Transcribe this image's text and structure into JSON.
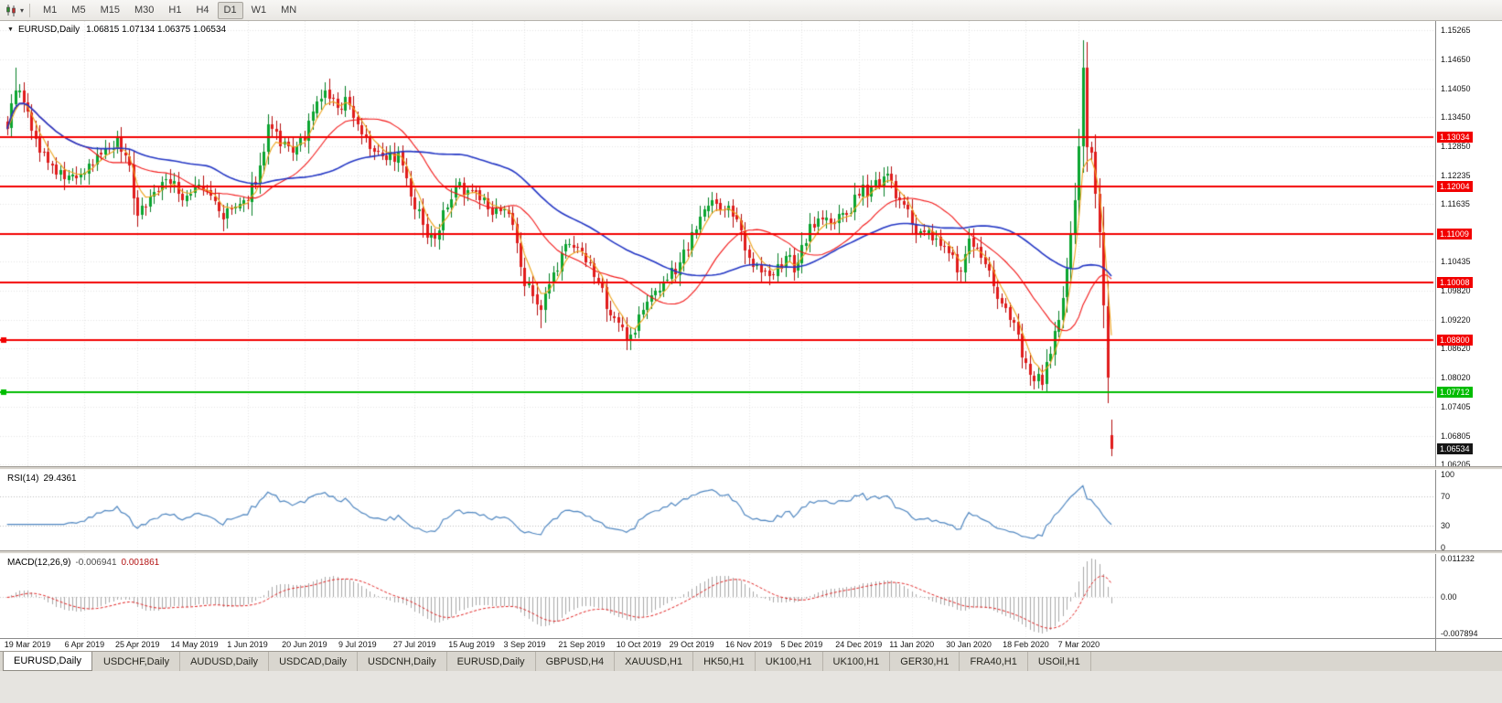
{
  "toolbar": {
    "timeframes": [
      "M1",
      "M5",
      "M15",
      "M30",
      "H1",
      "H4",
      "D1",
      "W1",
      "MN"
    ],
    "active_timeframe": "D1"
  },
  "chart_header": {
    "symbol": "EURUSD,Daily",
    "ohlc_text": "1.06815 1.07134 1.06375 1.06534"
  },
  "rsi_panel": {
    "label": "RSI(14)",
    "value": "29.4361",
    "line_color": "#4f86c0",
    "levels": [
      70,
      30
    ],
    "axis_labels": [
      {
        "v": 100,
        "t": "100"
      },
      {
        "v": 70,
        "t": "70"
      },
      {
        "v": 30,
        "t": "30"
      },
      {
        "v": 0,
        "t": "0"
      }
    ]
  },
  "macd_panel": {
    "label": "MACD(12,26,9)",
    "main_value": "-0.006941",
    "signal_value": "0.001861",
    "axis_top": "0.011232",
    "axis_zero": "0.00",
    "axis_bottom": "-0.007894",
    "hist_color": "#a8a8a8",
    "signal_color": "#e02020"
  },
  "tabs": {
    "items": [
      "EURUSD,Daily",
      "USDCHF,Daily",
      "AUDUSD,Daily",
      "USDCAD,Daily",
      "USDCNH,Daily",
      "EURUSD,Daily",
      "GBPUSD,H4",
      "XAUUSD,H1",
      "HK50,H1",
      "UK100,H1",
      "UK100,H1",
      "GER30,H1",
      "FRA40,H1",
      "USOil,H1"
    ],
    "active_index": 0
  },
  "chart_data": {
    "type": "candlestick",
    "symbol": "EURUSD",
    "timeframe": "Daily",
    "bars": 272,
    "price_range": {
      "top": 1.15265,
      "bottom": 1.06205
    },
    "last_ohlc": {
      "open": 1.06815,
      "high": 1.07134,
      "low": 1.06375,
      "close": 1.06534
    },
    "current_price": {
      "price": 1.06534,
      "label": "1.06534",
      "badge_color": "#161616"
    },
    "y_axis_ticks": [
      "1.15265",
      "1.14650",
      "1.14050",
      "1.13450",
      "1.12850",
      "1.12235",
      "1.11635",
      "1.10435",
      "1.09820",
      "1.09220",
      "1.08620",
      "1.08020",
      "1.07405",
      "1.06805",
      "1.06205"
    ],
    "x_axis_ticks": [
      {
        "bar": 5,
        "label": "19 Mar 2019"
      },
      {
        "bar": 19,
        "label": "6 Apr 2019"
      },
      {
        "bar": 32,
        "label": "25 Apr 2019"
      },
      {
        "bar": 46,
        "label": "14 May 2019"
      },
      {
        "bar": 59,
        "label": "1 Jun 2019"
      },
      {
        "bar": 73,
        "label": "20 Jun 2019"
      },
      {
        "bar": 86,
        "label": "9 Jul 2019"
      },
      {
        "bar": 100,
        "label": "27 Jul 2019"
      },
      {
        "bar": 114,
        "label": "15 Aug 2019"
      },
      {
        "bar": 127,
        "label": "3 Sep 2019"
      },
      {
        "bar": 141,
        "label": "21 Sep 2019"
      },
      {
        "bar": 155,
        "label": "10 Oct 2019"
      },
      {
        "bar": 168,
        "label": "29 Oct 2019"
      },
      {
        "bar": 182,
        "label": "16 Nov 2019"
      },
      {
        "bar": 195,
        "label": "5 Dec 2019"
      },
      {
        "bar": 209,
        "label": "24 Dec 2019"
      },
      {
        "bar": 222,
        "label": "11 Jan 2020"
      },
      {
        "bar": 236,
        "label": "30 Jan 2020"
      },
      {
        "bar": 250,
        "label": "18 Feb 2020"
      },
      {
        "bar": 263,
        "label": "7 Mar 2020"
      }
    ],
    "horizontal_lines": [
      {
        "price": 1.13034,
        "label": "1.13034",
        "color": "#f20000",
        "handle": false
      },
      {
        "price": 1.12004,
        "label": "1.12004",
        "color": "#f20000",
        "handle": false
      },
      {
        "price": 1.11009,
        "label": "1.11009",
        "color": "#f20000",
        "handle": false
      },
      {
        "price": 1.10008,
        "label": "1.10008",
        "color": "#f20000",
        "handle": false
      },
      {
        "price": 1.088,
        "label": "1.08800",
        "color": "#f20000",
        "handle": true
      },
      {
        "price": 1.07712,
        "label": "1.07712",
        "color": "#00bc00",
        "handle": true
      }
    ],
    "moving_averages": [
      {
        "name": "fast",
        "type": "ema",
        "period": 5,
        "color": "#eda31a",
        "width": 1.1
      },
      {
        "name": "medium",
        "type": "sma",
        "period": 20,
        "color": "#f21616",
        "width": 1.1
      },
      {
        "name": "slow",
        "type": "sma",
        "period": 50,
        "color": "#2336c4",
        "width": 1.6
      }
    ],
    "colors": {
      "bull": "#0aa52f",
      "bear": "#e11b1b",
      "bull_wick": "#067f26",
      "bear_wick": "#b30d0d",
      "grid": "#e4e4e4"
    },
    "close_anchors": [
      [
        0,
        1.132
      ],
      [
        2,
        1.14
      ],
      [
        4,
        1.1375
      ],
      [
        7,
        1.13
      ],
      [
        10,
        1.125
      ],
      [
        14,
        1.1215
      ],
      [
        19,
        1.1228
      ],
      [
        23,
        1.1268
      ],
      [
        27,
        1.1302
      ],
      [
        30,
        1.1245
      ],
      [
        32,
        1.114
      ],
      [
        35,
        1.118
      ],
      [
        39,
        1.1215
      ],
      [
        43,
        1.1172
      ],
      [
        46,
        1.12
      ],
      [
        50,
        1.1182
      ],
      [
        53,
        1.1132
      ],
      [
        56,
        1.1158
      ],
      [
        59,
        1.117
      ],
      [
        62,
        1.1245
      ],
      [
        64,
        1.133
      ],
      [
        67,
        1.1285
      ],
      [
        70,
        1.127
      ],
      [
        73,
        1.1295
      ],
      [
        76,
        1.1378
      ],
      [
        78,
        1.14
      ],
      [
        81,
        1.1365
      ],
      [
        83,
        1.1388
      ],
      [
        86,
        1.133
      ],
      [
        90,
        1.1272
      ],
      [
        93,
        1.1255
      ],
      [
        96,
        1.1272
      ],
      [
        99,
        1.118
      ],
      [
        102,
        1.112
      ],
      [
        105,
        1.1092
      ],
      [
        107,
        1.115
      ],
      [
        110,
        1.1202
      ],
      [
        113,
        1.1192
      ],
      [
        116,
        1.1172
      ],
      [
        119,
        1.1142
      ],
      [
        122,
        1.1152
      ],
      [
        125,
        1.1082
      ],
      [
        127,
        1.0992
      ],
      [
        129,
        1.0972
      ],
      [
        131,
        1.0942
      ],
      [
        134,
        1.1022
      ],
      [
        136,
        1.1062
      ],
      [
        139,
        1.1072
      ],
      [
        142,
        1.1042
      ],
      [
        145,
        1.1002
      ],
      [
        148,
        1.0932
      ],
      [
        151,
        1.0906
      ],
      [
        153,
        1.0892
      ],
      [
        156,
        1.0942
      ],
      [
        159,
        1.0982
      ],
      [
        162,
        1.1005
      ],
      [
        165,
        1.1042
      ],
      [
        168,
        1.1105
      ],
      [
        171,
        1.1152
      ],
      [
        173,
        1.1172
      ],
      [
        176,
        1.1152
      ],
      [
        179,
        1.1132
      ],
      [
        182,
        1.1052
      ],
      [
        185,
        1.1022
      ],
      [
        188,
        1.1015
      ],
      [
        191,
        1.1055
      ],
      [
        193,
        1.1022
      ],
      [
        195,
        1.1078
      ],
      [
        197,
        1.1122
      ],
      [
        200,
        1.1132
      ],
      [
        203,
        1.1122
      ],
      [
        206,
        1.1142
      ],
      [
        209,
        1.1182
      ],
      [
        212,
        1.1202
      ],
      [
        215,
        1.1222
      ],
      [
        217,
        1.1212
      ],
      [
        219,
        1.1172
      ],
      [
        222,
        1.1122
      ],
      [
        225,
        1.1105
      ],
      [
        228,
        1.1092
      ],
      [
        231,
        1.1062
      ],
      [
        234,
        1.1023
      ],
      [
        236,
        1.1092
      ],
      [
        239,
        1.1052
      ],
      [
        242,
        1.0992
      ],
      [
        245,
        1.0946
      ],
      [
        248,
        1.0892
      ],
      [
        250,
        1.0832
      ],
      [
        252,
        1.0795
      ],
      [
        254,
        1.0786
      ],
      [
        256,
        1.0852
      ],
      [
        258,
        1.0922
      ],
      [
        260,
        1.1028
      ],
      [
        262,
        1.1172
      ],
      [
        263,
        1.1284
      ],
      [
        264,
        1.1448
      ],
      [
        265,
        1.1282
      ],
      [
        266,
        1.127
      ],
      [
        267,
        1.1185
      ],
      [
        268,
        1.1105
      ],
      [
        269,
        1.0952
      ],
      [
        270,
        1.0802
      ],
      [
        271,
        1.06534
      ]
    ],
    "wick_events": [
      {
        "bar": 2,
        "high": 1.1448
      },
      {
        "bar": 53,
        "low": 1.1107
      },
      {
        "bar": 102,
        "low": 1.1102
      },
      {
        "bar": 131,
        "low": 1.0905
      },
      {
        "bar": 153,
        "low": 1.0868
      },
      {
        "bar": 234,
        "low": 1.0998
      },
      {
        "bar": 254,
        "low": 1.0778
      },
      {
        "bar": 264,
        "high": 1.1495
      },
      {
        "bar": 270,
        "low": 1.076
      }
    ],
    "indicators": {
      "rsi": {
        "period": 14,
        "current": 29.4361
      },
      "macd": {
        "fast": 12,
        "slow": 26,
        "signal": 9,
        "current_main": -0.006941,
        "current_signal": 0.001861
      }
    }
  }
}
